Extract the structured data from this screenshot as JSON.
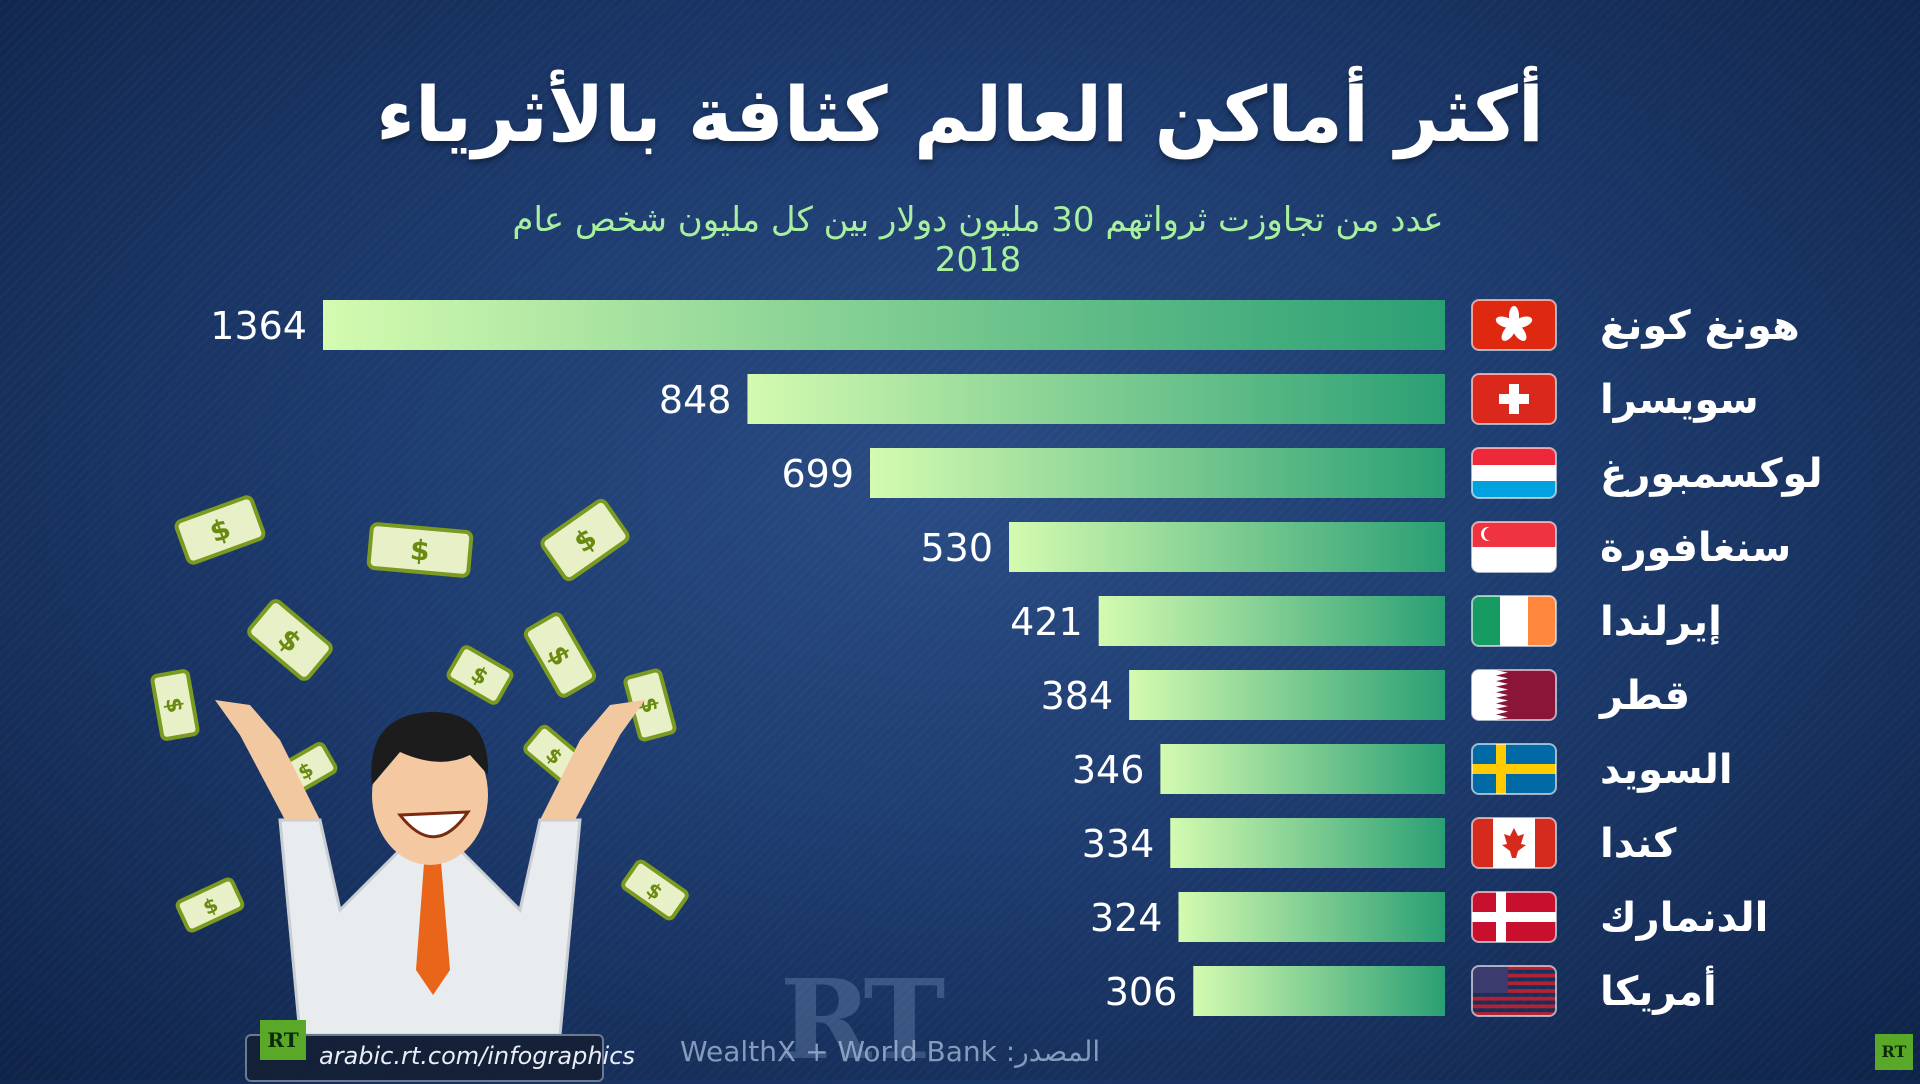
{
  "title": "أكثر أماكن العالم كثافة بالأثرياء",
  "subtitle": "عدد من تجاوزت ثرواتهم  30 مليون دولار بين كل مليون شخص عام 2018",
  "source": "المصدر: WealthX + World Bank",
  "url": "arabic.rt.com/infographics",
  "logo_text": "RT",
  "colors": {
    "bar_light": "#d4fbb0",
    "bar_dark": "#2a9f74",
    "background": "#1d3b6e",
    "subtitle": "#a8f0a0"
  },
  "chart_data": {
    "type": "bar",
    "orientation": "horizontal",
    "title": "أكثر أماكن العالم كثافة بالأثرياء",
    "subtitle": "عدد من تجاوزت ثرواتهم  30 مليون دولار بين كل مليون شخص عام 2018",
    "categories": [
      "هونغ كونغ",
      "سويسرا",
      "لوكسمبورغ",
      "سنغافورة",
      "إيرلندا",
      "قطر",
      "السويد",
      "كندا",
      "الدنمارك",
      "أمريكا"
    ],
    "values": [
      1364,
      848,
      699,
      530,
      421,
      384,
      346,
      334,
      324,
      306
    ],
    "flags": [
      "hong-kong-flag",
      "switzerland-flag",
      "luxembourg-flag",
      "singapore-flag",
      "ireland-flag",
      "qatar-flag",
      "sweden-flag",
      "canada-flag",
      "denmark-flag",
      "usa-flag"
    ],
    "xlim": [
      0,
      1364
    ],
    "grid": false,
    "legend": "none"
  }
}
